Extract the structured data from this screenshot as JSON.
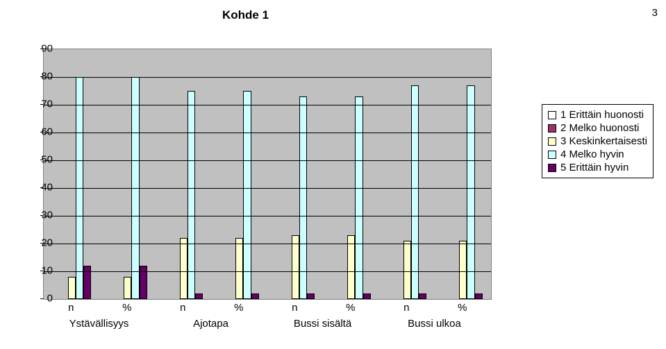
{
  "page_number": "3",
  "chart": {
    "type": "bar",
    "title": "Kohde 1",
    "title_fontsize": 17,
    "title_fontweight": "bold",
    "background_color": "#ffffff",
    "plot_background_color": "#c0c0c0",
    "plot_border_color": "#7f7f7f",
    "grid_color": "#000000",
    "y": {
      "min": 0,
      "max": 90,
      "ticks": [
        0,
        10,
        20,
        30,
        40,
        50,
        60,
        70,
        80,
        90
      ],
      "label_fontsize": 15
    },
    "series": [
      {
        "name": "1 Erittäin huonosti",
        "color": "#ffffff"
      },
      {
        "name": "2 Melko huonosti",
        "color": "#993366"
      },
      {
        "name": "3 Keskinkertaisesti",
        "color": "#ffffcc"
      },
      {
        "name": "4 Melko hyvin",
        "color": "#ccffff"
      },
      {
        "name": "5 Erittäin hyvin",
        "color": "#660066"
      }
    ],
    "bar_border_color": "#000000",
    "groups": [
      {
        "label": "Ystävällisyys",
        "sub": [
          {
            "label": "n",
            "values": [
              0,
              0,
              8,
              80,
              12
            ]
          },
          {
            "label": "%",
            "values": [
              0,
              0,
              8,
              80,
              12
            ]
          }
        ]
      },
      {
        "label": "Ajotapa",
        "sub": [
          {
            "label": "n",
            "values": [
              0,
              0,
              22,
              75,
              2
            ]
          },
          {
            "label": "%",
            "values": [
              0,
              0,
              22,
              75,
              2
            ]
          }
        ]
      },
      {
        "label": "Bussi sisältä",
        "sub": [
          {
            "label": "n",
            "values": [
              0,
              0,
              23,
              73,
              2
            ]
          },
          {
            "label": "%",
            "values": [
              0,
              0,
              23,
              73,
              2
            ]
          }
        ]
      },
      {
        "label": "Bussi ulkoa",
        "sub": [
          {
            "label": "n",
            "values": [
              0,
              0,
              21,
              77,
              2
            ]
          },
          {
            "label": "%",
            "values": [
              0,
              0,
              21,
              77,
              2
            ]
          }
        ]
      }
    ],
    "xlabel_fontsize": 15,
    "legend_fontsize": 15
  }
}
